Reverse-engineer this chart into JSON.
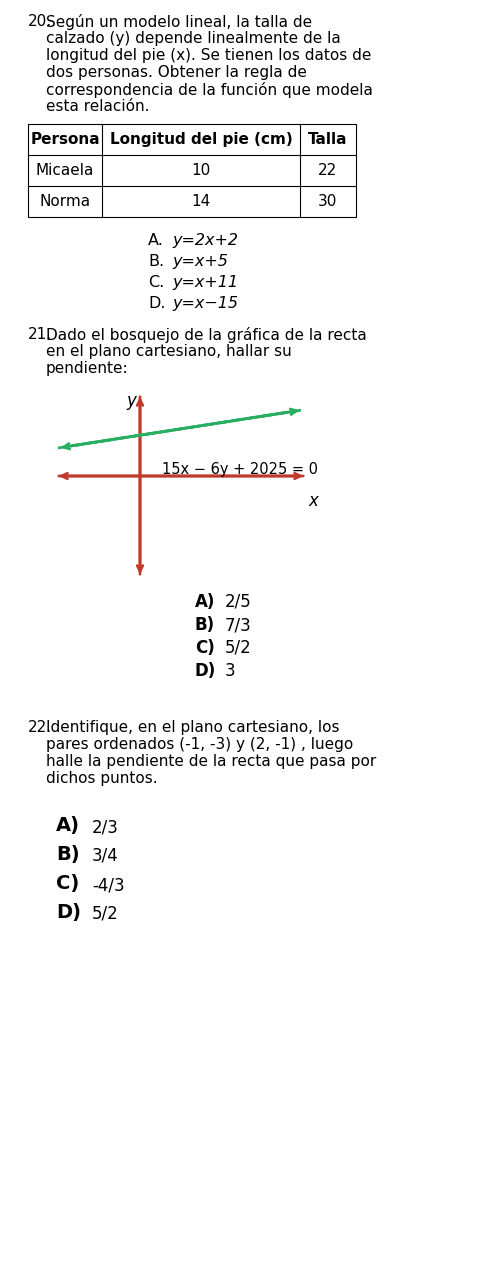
{
  "bg_color": "#ffffff",
  "q20_text_lines": [
    "Según un modelo lineal, la talla de",
    "calzado (y) depende linealmente de la",
    "longitud del pie (x). Se tienen los datos de",
    "dos personas. Obtener la regla de",
    "correspondencia de la función que modela",
    "esta relación."
  ],
  "table_headers": [
    "Persona",
    "Longitud del pie (cm)",
    "Talla"
  ],
  "table_row1": [
    "Micaela",
    "10",
    "22"
  ],
  "table_row2": [
    "Norma",
    "14",
    "30"
  ],
  "q20_options": [
    [
      "A.",
      "y=2x+2"
    ],
    [
      "B.",
      "y=x+5"
    ],
    [
      "C.",
      "y=x+11"
    ],
    [
      "D.",
      "y=x−15"
    ]
  ],
  "q21_text_lines": [
    "Dado el bosquejo de la gráfica de la recta",
    "en el plano cartesiano, hallar su",
    "pendiente:"
  ],
  "graph_equation": "15x − 6y + 2025 = 0",
  "q21_options": [
    [
      "A)",
      "2/5"
    ],
    [
      "B)",
      "7/3"
    ],
    [
      "C)",
      "5/2"
    ],
    [
      "D)",
      "3"
    ]
  ],
  "q22_text_lines": [
    "Identifique, en el plano cartesiano, los",
    "pares ordenados (-1, -3) y (2, -1) , luego",
    "halle la pendiente de la recta que pasa por",
    "dichos puntos."
  ],
  "q22_options": [
    [
      "A)",
      "2/3"
    ],
    [
      "B)",
      "3/4"
    ],
    [
      "C)",
      "-4/3"
    ],
    [
      "D)",
      "5/2"
    ]
  ],
  "axis_color": "#c0392b",
  "line_color": "#27ae60"
}
